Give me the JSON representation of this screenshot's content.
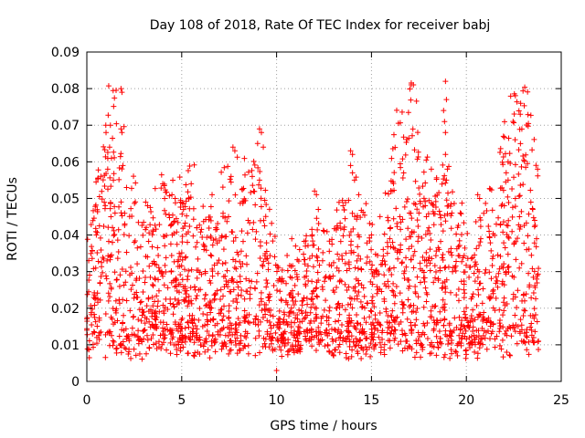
{
  "chart_data": {
    "type": "scatter",
    "title": "Day 108 of 2018, Rate Of TEC Index for receiver babj",
    "xlabel": "GPS time / hours",
    "ylabel": "ROTI / TECUs",
    "xlim": [
      0,
      25
    ],
    "ylim": [
      0,
      0.09
    ],
    "xticks": [
      0,
      5,
      10,
      15,
      20,
      25
    ],
    "xtick_labels": [
      "0",
      "5",
      "10",
      "15",
      "20",
      "25"
    ],
    "yticks": [
      0,
      0.01,
      0.02,
      0.03,
      0.04,
      0.05,
      0.06,
      0.07,
      0.08,
      0.09
    ],
    "ytick_labels": [
      "0",
      "0.01",
      "0.02",
      "0.03",
      "0.04",
      "0.05",
      "0.06",
      "0.07",
      "0.08",
      "0.09"
    ],
    "grid": true,
    "marker": "+",
    "marker_color": "#ff0000",
    "x_data_range": [
      0,
      23.8
    ],
    "series": [
      {
        "name": "ROTI",
        "points": [
          [
            1.0,
            0.07
          ],
          [
            1.2,
            0.064
          ],
          [
            1.3,
            0.061
          ],
          [
            1.1,
            0.058
          ],
          [
            1.4,
            0.055
          ],
          [
            1.8,
            0.08
          ],
          [
            1.85,
            0.079
          ],
          [
            1.8,
            0.069
          ],
          [
            1.85,
            0.068
          ],
          [
            1.9,
            0.059
          ],
          [
            0.5,
            0.04
          ],
          [
            3.1,
            0.049
          ],
          [
            3.2,
            0.048
          ],
          [
            4.0,
            0.054
          ],
          [
            4.1,
            0.05
          ],
          [
            5.5,
            0.054
          ],
          [
            6.6,
            0.051
          ],
          [
            7.7,
            0.064
          ],
          [
            7.8,
            0.063
          ],
          [
            7.6,
            0.056
          ],
          [
            9.1,
            0.069
          ],
          [
            9.2,
            0.068
          ],
          [
            9.0,
            0.065
          ],
          [
            9.3,
            0.064
          ],
          [
            9.1,
            0.055
          ],
          [
            9.15,
            0.037
          ],
          [
            10.1,
            0.031
          ],
          [
            10.2,
            0.028
          ],
          [
            11.0,
            0.037
          ],
          [
            12.0,
            0.052
          ],
          [
            12.1,
            0.051
          ],
          [
            12.2,
            0.047
          ],
          [
            13.9,
            0.063
          ],
          [
            14.0,
            0.062
          ],
          [
            13.9,
            0.059
          ],
          [
            14.0,
            0.057
          ],
          [
            13.5,
            0.048
          ],
          [
            16.5,
            0.045
          ],
          [
            17.0,
            0.046
          ],
          [
            17.5,
            0.046
          ],
          [
            18.9,
            0.082
          ],
          [
            18.95,
            0.077
          ],
          [
            18.8,
            0.074
          ],
          [
            18.85,
            0.071
          ],
          [
            18.9,
            0.068
          ],
          [
            18.9,
            0.062
          ],
          [
            19.0,
            0.058
          ],
          [
            18.95,
            0.055
          ],
          [
            20.6,
            0.051
          ],
          [
            20.7,
            0.05
          ],
          [
            22.2,
            0.06
          ],
          [
            22.1,
            0.057
          ],
          [
            22.2,
            0.055
          ],
          [
            22.0,
            0.048
          ],
          [
            23.4,
            0.049
          ],
          [
            23.5,
            0.047
          ],
          [
            23.6,
            0.044
          ],
          [
            23.7,
            0.039
          ],
          [
            2.0,
            0.043
          ],
          [
            2.5,
            0.038
          ],
          [
            4.5,
            0.04
          ],
          [
            5.8,
            0.042
          ],
          [
            6.8,
            0.042
          ],
          [
            8.5,
            0.044
          ],
          [
            10.8,
            0.039
          ],
          [
            12.5,
            0.041
          ],
          [
            15.0,
            0.04
          ],
          [
            16.0,
            0.042
          ],
          [
            21.2,
            0.041
          ],
          [
            21.8,
            0.043
          ],
          [
            22.8,
            0.045
          ],
          [
            0.1,
            0.033
          ],
          [
            0.3,
            0.013
          ],
          [
            23.8,
            0.011
          ],
          [
            10.0,
            0.003
          ]
        ]
      }
    ]
  }
}
